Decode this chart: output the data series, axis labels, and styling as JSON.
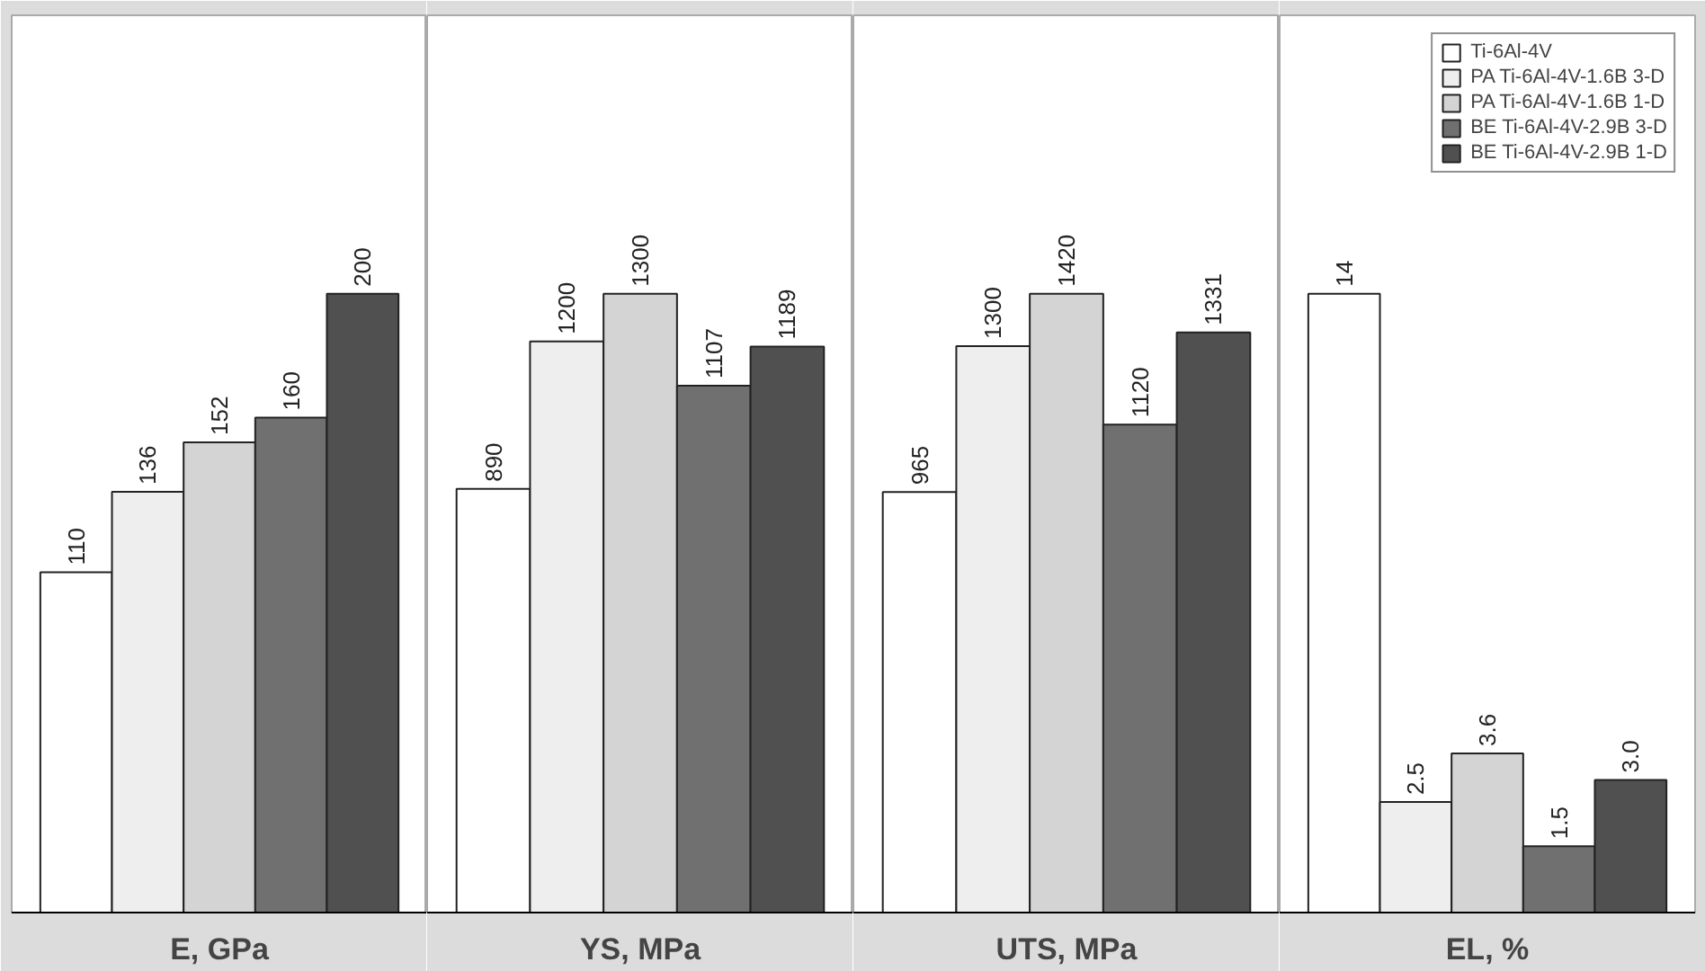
{
  "chart_data": [
    {
      "type": "bar",
      "xlabel": "E, GPa",
      "categories": [
        null
      ],
      "data_labels": true,
      "series": [
        {
          "color": "#ffffff",
          "values": [
            110
          ]
        },
        {
          "color": "#eeeeee",
          "values": [
            136
          ]
        },
        {
          "color": "#d4d4d4",
          "values": [
            152
          ]
        },
        {
          "color": "#707070",
          "values": [
            160
          ]
        },
        {
          "color": "#505050",
          "values": [
            200
          ]
        }
      ]
    },
    {
      "type": "bar",
      "xlabel": "YS, MPa",
      "categories": [
        null
      ],
      "data_labels": true,
      "series": [
        {
          "color": "#ffffff",
          "values": [
            890
          ]
        },
        {
          "color": "#eeeeee",
          "values": [
            1200
          ]
        },
        {
          "color": "#d4d4d4",
          "values": [
            1300
          ]
        },
        {
          "color": "#707070",
          "values": [
            1107
          ]
        },
        {
          "color": "#505050",
          "values": [
            1189
          ]
        }
      ]
    },
    {
      "type": "bar",
      "xlabel": "UTS, MPa",
      "categories": [
        null
      ],
      "data_labels": true,
      "series": [
        {
          "color": "#ffffff",
          "values": [
            965
          ]
        },
        {
          "color": "#eeeeee",
          "values": [
            1300
          ]
        },
        {
          "color": "#d4d4d4",
          "values": [
            1420
          ]
        },
        {
          "color": "#707070",
          "values": [
            1120
          ]
        },
        {
          "color": "#505050",
          "values": [
            1331
          ]
        }
      ]
    },
    {
      "type": "bar",
      "xlabel": "EL, %",
      "categories": [
        null
      ],
      "data_labels": true,
      "legend": "top right",
      "series": [
        {
          "name": "Ti-6Al-4V",
          "color": "#ffffff",
          "values": [
            14
          ]
        },
        {
          "name": "PA Ti-6Al-4V-1.6B 3-D",
          "color": "#eeeeee",
          "values": [
            2.5
          ]
        },
        {
          "name": "PA Ti-6Al-4V-1.6B 1-D",
          "color": "#d4d4d4",
          "values": [
            3.6
          ]
        },
        {
          "name": "BE Ti-6Al-4V-2.9B 3-D",
          "color": "#707070",
          "values": [
            1.5
          ]
        },
        {
          "name": "BE Ti-6Al-4V-2.9B 1-D",
          "color": "#505050",
          "values": [
            3.0
          ],
          "value_labels": [
            "3.0"
          ]
        }
      ]
    }
  ]
}
